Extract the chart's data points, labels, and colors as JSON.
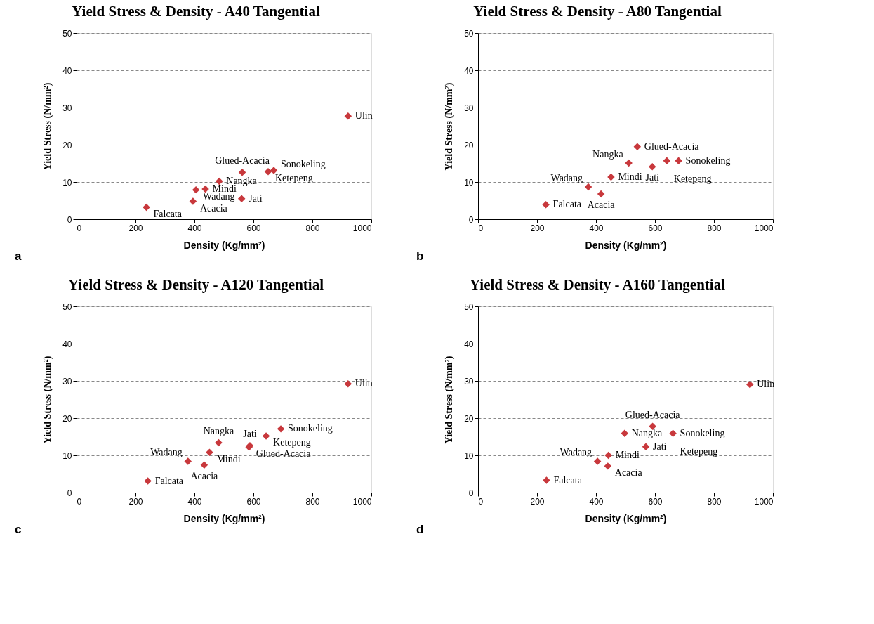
{
  "chart_data": [
    {
      "type": "scatter",
      "title": "Yield Stress & Density - A40 Tangential",
      "xlabel": "Density (Kg/mm²)",
      "ylabel": "Yield Stress  (N/mm²)",
      "xlim": [
        0,
        1000
      ],
      "xticks": [
        0,
        200,
        400,
        600,
        800,
        1000
      ],
      "ylim": [
        0,
        50
      ],
      "yticks": [
        0,
        10,
        20,
        30,
        40,
        50
      ],
      "grid": "y",
      "marker": "diamond",
      "x": [
        921,
        562,
        669,
        650,
        484,
        437,
        405,
        395,
        560,
        237
      ],
      "series": [
        {
          "color": "#c8383c",
          "values": [
            27.7,
            12.6,
            13.1,
            12.8,
            10.2,
            8.1,
            7.9,
            4.8,
            5.5,
            3.2
          ]
        }
      ],
      "annotations": [
        {
          "text": "Ulin",
          "x": 921,
          "y": 27.7
        },
        {
          "text": "Glued-Acacia",
          "x": 562,
          "y": 12.6
        },
        {
          "text": "Sonokeling",
          "x": 669,
          "y": 13.1
        },
        {
          "text": "Ketepeng",
          "x": 650,
          "y": 12.8
        },
        {
          "text": "Nangka",
          "x": 484,
          "y": 10.2
        },
        {
          "text": "Mindi",
          "x": 437,
          "y": 8.1
        },
        {
          "text": "Wadang",
          "x": 405,
          "y": 7.9
        },
        {
          "text": "Acacia",
          "x": 395,
          "y": 4.8
        },
        {
          "text": "Jati",
          "x": 560,
          "y": 5.5
        },
        {
          "text": "Falcata",
          "x": 237,
          "y": 3.2
        },
        "a"
      ]
    },
    {
      "type": "scatter",
      "title": "Yield Stress & Density - A80 Tangential",
      "xlabel": "Density (Kg/mm²)",
      "ylabel": "Yield Stress  (N/mm²)",
      "xlim": [
        0,
        1000
      ],
      "xticks": [
        0,
        200,
        400,
        600,
        800,
        1000
      ],
      "ylim": [
        0,
        50
      ],
      "yticks": [
        0,
        10,
        20,
        30,
        40,
        50
      ],
      "grid": "y",
      "marker": "diamond",
      "x": [
        540,
        680,
        640,
        511,
        451,
        374,
        417,
        591,
        230
      ],
      "series": [
        {
          "color": "#c8383c",
          "values": [
            19.5,
            15.7,
            15.7,
            15.1,
            11.3,
            8.7,
            6.8,
            14.1,
            3.9
          ]
        }
      ],
      "annotations": [
        {
          "text": "Glued-Acacia",
          "x": 540,
          "y": 19.5
        },
        {
          "text": "Sonokeling",
          "x": 680,
          "y": 15.7
        },
        {
          "text": "Ketepeng",
          "x": 640,
          "y": 15.7
        },
        {
          "text": "Nangka",
          "x": 511,
          "y": 15.1
        },
        {
          "text": "Mindi",
          "x": 451,
          "y": 11.3
        },
        {
          "text": "Wadang",
          "x": 374,
          "y": 8.7
        },
        {
          "text": "Acacia",
          "x": 417,
          "y": 6.8
        },
        {
          "text": "Jati",
          "x": 591,
          "y": 14.1
        },
        {
          "text": "Falcata",
          "x": 230,
          "y": 3.9
        },
        "b"
      ]
    },
    {
      "type": "scatter",
      "title": "Yield Stress & Density - A120 Tangential",
      "xlabel": "Density (Kg/mm²)",
      "ylabel": "Yield Stress  (N/mm²)",
      "xlim": [
        0,
        1000
      ],
      "xticks": [
        0,
        200,
        400,
        600,
        800,
        1000
      ],
      "ylim": [
        0,
        50
      ],
      "yticks": [
        0,
        10,
        20,
        30,
        40,
        50
      ],
      "grid": "y",
      "marker": "diamond",
      "x": [
        921,
        693,
        643,
        588,
        585,
        482,
        451,
        378,
        433,
        242
      ],
      "series": [
        {
          "color": "#c8383c",
          "values": [
            29.2,
            17.1,
            15.2,
            12.6,
            12.2,
            13.4,
            10.8,
            8.4,
            7.4,
            3.1
          ]
        }
      ],
      "annotations": [
        {
          "text": "Ulin",
          "x": 921,
          "y": 29.2
        },
        {
          "text": "Sonokeling",
          "x": 693,
          "y": 17.1
        },
        {
          "text": "Ketepeng",
          "x": 643,
          "y": 15.2
        },
        {
          "text": "Jati",
          "x": 588,
          "y": 12.6
        },
        {
          "text": "Glued-Acacia",
          "x": 585,
          "y": 12.2
        },
        {
          "text": "Nangka",
          "x": 482,
          "y": 13.4
        },
        {
          "text": "Mindi",
          "x": 451,
          "y": 10.8
        },
        {
          "text": "Wadang",
          "x": 378,
          "y": 8.4
        },
        {
          "text": "Acacia",
          "x": 433,
          "y": 7.4
        },
        {
          "text": "Falcata",
          "x": 242,
          "y": 3.1
        },
        "c"
      ]
    },
    {
      "type": "scatter",
      "title": "Yield Stress & Density - A160 Tangential",
      "xlabel": "Density (Kg/mm²)",
      "ylabel": "Yield Stress  (N/mm²)",
      "xlim": [
        0,
        1000
      ],
      "xticks": [
        0,
        200,
        400,
        600,
        800,
        1000
      ],
      "ylim": [
        0,
        50
      ],
      "yticks": [
        0,
        10,
        20,
        30,
        40,
        50
      ],
      "grid": "y",
      "marker": "diamond",
      "x": [
        922,
        592,
        661,
        497,
        569,
        442,
        405,
        440,
        232
      ],
      "series": [
        {
          "color": "#c8383c",
          "values": [
            29.0,
            17.8,
            15.9,
            15.9,
            12.3,
            10.0,
            8.4,
            7.1,
            3.3
          ]
        }
      ],
      "annotations": [
        {
          "text": "Ulin",
          "x": 922,
          "y": 29.0
        },
        {
          "text": "Glued-Acacia",
          "x": 592,
          "y": 17.8
        },
        {
          "text": "Sonokeling",
          "x": 661,
          "y": 15.9
        },
        {
          "text": "Ketepeng",
          "x": 661,
          "y": 15.9
        },
        {
          "text": "Nangka",
          "x": 497,
          "y": 15.9
        },
        {
          "text": "Jati",
          "x": 569,
          "y": 12.3
        },
        {
          "text": "Mindi",
          "x": 442,
          "y": 10.0
        },
        {
          "text": "Wadang",
          "x": 405,
          "y": 8.4
        },
        {
          "text": "Acacia",
          "x": 440,
          "y": 7.1
        },
        {
          "text": "Falcata",
          "x": 232,
          "y": 3.3
        },
        "d"
      ]
    }
  ]
}
